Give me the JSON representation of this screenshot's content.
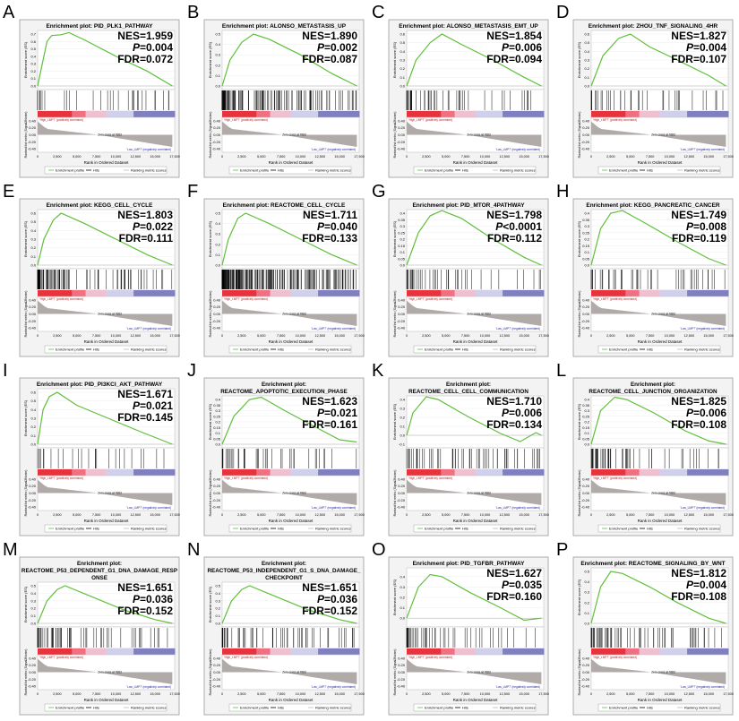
{
  "common": {
    "ylabel_es": "Enrichment score (ES)",
    "ylabel_rank": "Ranked list metric (Signal2Noise)",
    "xlabel": "Rank in Ordered Dataset",
    "xticks": [
      0,
      2500,
      5000,
      7500,
      10000,
      12500,
      15000,
      17500
    ],
    "rank_ticks": [
      0.4,
      0.2,
      0.0,
      -0.2,
      -0.4
    ],
    "high_label": "'High_LMP7' (positively correlated)",
    "low_label": "'Low_LMP7' (negatively correlated)",
    "zero_label": "Zero cross at 7683",
    "legend": [
      "Enrichment profile",
      "Hits",
      "Ranking metric scores"
    ],
    "title_prefix": "Enrichment plot:",
    "colors": {
      "profile": "#5fbf3a",
      "hits": "#000000",
      "metric": "#b0aaa8",
      "high": "#e8323c",
      "low": "#2a2a8c"
    }
  },
  "chart_data": [
    {
      "letter": "A",
      "type": "line",
      "title": [
        "Enrichment plot: PID_PLK1_PATHWAY"
      ],
      "NES": "NES=1.959",
      "P": "0.004",
      "P_op": "=",
      "FDR": "FDR=0.072",
      "ylim": [
        0,
        0.7
      ],
      "hits": 30,
      "es": [
        [
          0,
          0
        ],
        [
          600,
          0.3
        ],
        [
          1200,
          0.6
        ],
        [
          1800,
          0.68
        ],
        [
          3000,
          0.69
        ],
        [
          4000,
          0.72
        ],
        [
          6000,
          0.62
        ],
        [
          10000,
          0.4
        ],
        [
          14000,
          0.2
        ],
        [
          17200,
          0
        ]
      ]
    },
    {
      "letter": "B",
      "type": "line",
      "title": [
        "Enrichment plot: ALONSO_METASTASIS_UP"
      ],
      "NES": "NES=1.890",
      "P": "0.002",
      "P_op": "=",
      "FDR": "FDR=0.087",
      "ylim": [
        0,
        0.5
      ],
      "hits": 120,
      "es": [
        [
          0,
          0
        ],
        [
          1000,
          0.25
        ],
        [
          2500,
          0.42
        ],
        [
          4000,
          0.5
        ],
        [
          6000,
          0.45
        ],
        [
          10000,
          0.3
        ],
        [
          14000,
          0.12
        ],
        [
          17200,
          0
        ]
      ]
    },
    {
      "letter": "C",
      "type": "line",
      "title": [
        "Enrichment plot: ALONSO_METASTASIS_EMT_UP"
      ],
      "NES": "NES=1.854",
      "P": "0.006",
      "P_op": "=",
      "FDR": "FDR=0.094",
      "ylim": [
        0,
        0.6
      ],
      "hits": 45,
      "es": [
        [
          0,
          0
        ],
        [
          1200,
          0.3
        ],
        [
          3000,
          0.5
        ],
        [
          4500,
          0.6
        ],
        [
          7000,
          0.48
        ],
        [
          11000,
          0.3
        ],
        [
          15000,
          0.1
        ],
        [
          17200,
          0
        ]
      ]
    },
    {
      "letter": "D",
      "type": "line",
      "title": [
        "Enrichment plot: ZHOU_TNF_SIGNALING_4HR"
      ],
      "NES": "NES=1.827",
      "P": "0.004",
      "P_op": "=",
      "FDR": "FDR=0.107",
      "ylim": [
        0,
        0.6
      ],
      "hits": 35,
      "es": [
        [
          0,
          0
        ],
        [
          1500,
          0.35
        ],
        [
          3500,
          0.55
        ],
        [
          5000,
          0.6
        ],
        [
          7500,
          0.45
        ],
        [
          11000,
          0.3
        ],
        [
          15000,
          0.12
        ],
        [
          17200,
          0
        ]
      ]
    },
    {
      "letter": "E",
      "type": "line",
      "title": [
        "Enrichment plot: KEGG_CELL_CYCLE"
      ],
      "NES": "NES=1.803",
      "P": "0.022",
      "P_op": "=",
      "FDR": "FDR=0.111",
      "ylim": [
        0,
        0.6
      ],
      "hits": 90,
      "es": [
        [
          0,
          0
        ],
        [
          800,
          0.3
        ],
        [
          2000,
          0.52
        ],
        [
          3000,
          0.6
        ],
        [
          6000,
          0.48
        ],
        [
          10000,
          0.3
        ],
        [
          14000,
          0.12
        ],
        [
          17200,
          0
        ]
      ]
    },
    {
      "letter": "F",
      "type": "line",
      "title": [
        "Enrichment plot: REACTOME_CELL_CYCLE"
      ],
      "NES": "NES=1.711",
      "P": "0.040",
      "P_op": "=",
      "FDR": "FDR=0.133",
      "ylim": [
        0,
        0.5
      ],
      "hits": 200,
      "es": [
        [
          0,
          0
        ],
        [
          800,
          0.25
        ],
        [
          2000,
          0.45
        ],
        [
          3000,
          0.5
        ],
        [
          6000,
          0.4
        ],
        [
          10000,
          0.25
        ],
        [
          14000,
          0.1
        ],
        [
          17200,
          0
        ]
      ]
    },
    {
      "letter": "G",
      "type": "line",
      "title": [
        "Enrichment plot: PID_MTOR_4PATHWAY"
      ],
      "NES": "NES=1.798",
      "P": "0.0001",
      "P_op": "<",
      "FDR": "FDR=0.112",
      "ylim": [
        0,
        0.4
      ],
      "hits": 40,
      "es": [
        [
          0,
          0
        ],
        [
          1500,
          0.25
        ],
        [
          3000,
          0.38
        ],
        [
          4500,
          0.42
        ],
        [
          7000,
          0.36
        ],
        [
          11000,
          0.2
        ],
        [
          15000,
          0.06
        ],
        [
          17200,
          0
        ]
      ]
    },
    {
      "letter": "H",
      "type": "line",
      "title": [
        "Enrichment plot: KEGG_PANCREATIC_CANCER"
      ],
      "NES": "NES=1.749",
      "P": "0.008",
      "P_op": "=",
      "FDR": "FDR=0.119",
      "ylim": [
        0,
        0.4
      ],
      "hits": 45,
      "es": [
        [
          0,
          0
        ],
        [
          1200,
          0.28
        ],
        [
          2500,
          0.4
        ],
        [
          4000,
          0.42
        ],
        [
          7000,
          0.32
        ],
        [
          11000,
          0.18
        ],
        [
          15000,
          0.05
        ],
        [
          17200,
          0
        ]
      ]
    },
    {
      "letter": "I",
      "type": "line",
      "title": [
        "Enrichment plot: PID_PI3KCI_AKT_PATHWAY"
      ],
      "NES": "NES=1.671",
      "P": "0.021",
      "P_op": "=",
      "FDR": "FDR=0.145",
      "ylim": [
        0,
        0.6
      ],
      "hits": 25,
      "es": [
        [
          0,
          0
        ],
        [
          700,
          0.4
        ],
        [
          1500,
          0.55
        ],
        [
          2500,
          0.6
        ],
        [
          5000,
          0.45
        ],
        [
          9000,
          0.3
        ],
        [
          13000,
          0.15
        ],
        [
          17200,
          0
        ]
      ]
    },
    {
      "letter": "J",
      "type": "line",
      "title": [
        "Enrichment plot:",
        "REACTOME_APOPTOTIC_EXECUTION_PHASE"
      ],
      "NES": "NES=1.623",
      "P": "0.021",
      "P_op": "=",
      "FDR": "FDR=0.161",
      "ylim": [
        0,
        0.4
      ],
      "hits": 40,
      "es": [
        [
          0,
          0
        ],
        [
          1500,
          0.25
        ],
        [
          3500,
          0.4
        ],
        [
          5000,
          0.42
        ],
        [
          8000,
          0.3
        ],
        [
          12000,
          0.15
        ],
        [
          15000,
          0.04
        ],
        [
          17200,
          0.02
        ]
      ]
    },
    {
      "letter": "K",
      "type": "line",
      "title": [
        "Enrichment plot:",
        "REACTOME_CELL_CELL_COMMUNICATION"
      ],
      "NES": "NES=1.710",
      "P": "0.006",
      "P_op": "=",
      "FDR": "FDR=0.134",
      "ylim": [
        -0.1,
        0.4
      ],
      "hits": 55,
      "es": [
        [
          0,
          0
        ],
        [
          800,
          0.25
        ],
        [
          2500,
          0.43
        ],
        [
          4000,
          0.4
        ],
        [
          8000,
          0.2
        ],
        [
          12000,
          0.02
        ],
        [
          14500,
          -0.07
        ],
        [
          16500,
          0.03
        ],
        [
          17200,
          0
        ]
      ]
    },
    {
      "letter": "L",
      "type": "line",
      "title": [
        "Enrichment plot:",
        "REACTOME_CELL_JUNCTION_ORGANIZATION"
      ],
      "NES": "NES=1.825",
      "P": "0.006",
      "P_op": "=",
      "FDR": "FDR=0.108",
      "ylim": [
        0,
        0.4
      ],
      "hits": 50,
      "es": [
        [
          0,
          0
        ],
        [
          1200,
          0.3
        ],
        [
          3000,
          0.42
        ],
        [
          4500,
          0.4
        ],
        [
          8000,
          0.28
        ],
        [
          12000,
          0.12
        ],
        [
          15000,
          0.03
        ],
        [
          17200,
          0
        ]
      ]
    },
    {
      "letter": "M",
      "type": "line",
      "title": [
        "Enrichment plot:",
        "REACTOME_P53_DEPENDENT_G1_DNA_DAMAGE_RESP",
        "ONSE"
      ],
      "NES": "NES=1.651",
      "P": "0.036",
      "P_op": "=",
      "FDR": "FDR=0.152",
      "ylim": [
        0,
        0.5
      ],
      "hits": 55,
      "es": [
        [
          0,
          0
        ],
        [
          1200,
          0.3
        ],
        [
          2500,
          0.45
        ],
        [
          3500,
          0.5
        ],
        [
          7000,
          0.35
        ],
        [
          11000,
          0.18
        ],
        [
          15000,
          0.05
        ],
        [
          17200,
          0
        ]
      ]
    },
    {
      "letter": "N",
      "type": "line",
      "title": [
        "Enrichment plot:",
        "REACTOME_P53_INDEPENDENT_G1_S_DNA_DAMAGE_",
        "CHECKPOINT"
      ],
      "NES": "NES=1.651",
      "P": "0.036",
      "P_op": "=",
      "FDR": "FDR=0.152",
      "ylim": [
        0,
        0.5
      ],
      "hits": 55,
      "es": [
        [
          0,
          0
        ],
        [
          1200,
          0.3
        ],
        [
          2500,
          0.45
        ],
        [
          3500,
          0.5
        ],
        [
          7000,
          0.35
        ],
        [
          11000,
          0.18
        ],
        [
          15000,
          0.05
        ],
        [
          17200,
          0
        ]
      ]
    },
    {
      "letter": "O",
      "type": "line",
      "title": [
        "Enrichment plot: PID_TGFBR_PATHWAY"
      ],
      "NES": "NES=1.627",
      "P": "0.035",
      "P_op": "=",
      "FDR": "FDR=0.160",
      "ylim": [
        -0.05,
        0.45
      ],
      "hits": 45,
      "es": [
        [
          0,
          0
        ],
        [
          1500,
          0.3
        ],
        [
          3000,
          0.42
        ],
        [
          4500,
          0.4
        ],
        [
          8000,
          0.25
        ],
        [
          12000,
          0.1
        ],
        [
          15000,
          -0.02
        ],
        [
          17200,
          0
        ]
      ]
    },
    {
      "letter": "P",
      "type": "line",
      "title": [
        "Enrichment plot: REACTOME_SIGNALING_BY_WNT"
      ],
      "NES": "NES=1.812",
      "P": "0.004",
      "P_op": "=",
      "FDR": "FDR=0.108",
      "ylim": [
        0,
        0.5
      ],
      "hits": 60,
      "es": [
        [
          0,
          0
        ],
        [
          1200,
          0.35
        ],
        [
          2500,
          0.5
        ],
        [
          4000,
          0.48
        ],
        [
          7500,
          0.35
        ],
        [
          11000,
          0.2
        ],
        [
          15000,
          0.05
        ],
        [
          17200,
          0
        ]
      ]
    }
  ]
}
